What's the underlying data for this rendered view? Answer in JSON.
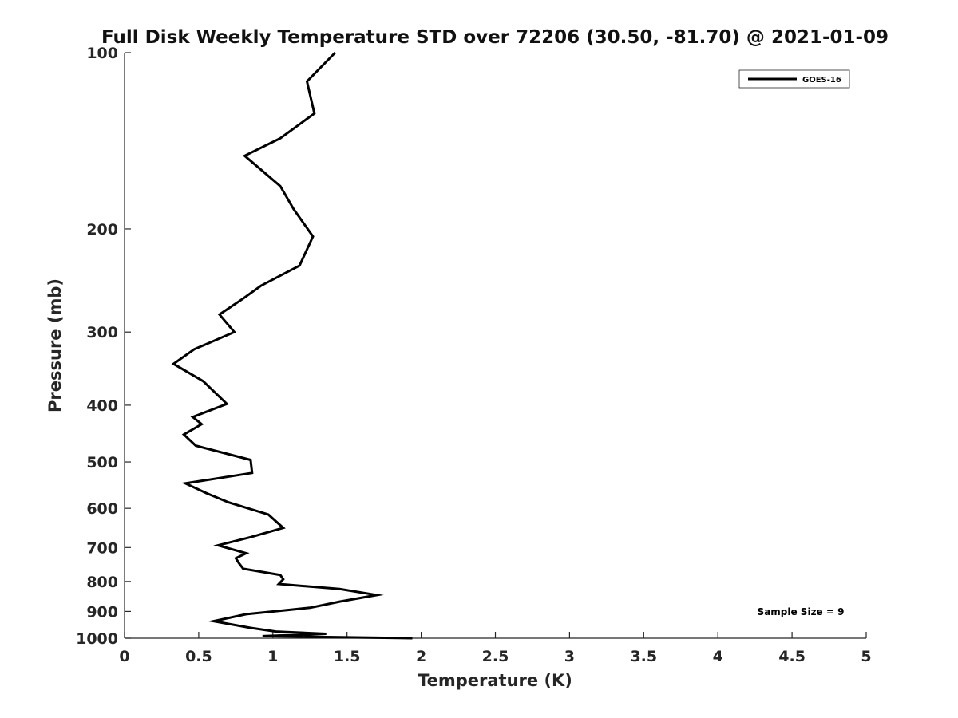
{
  "chart_data": {
    "type": "line",
    "title": "Full Disk Weekly Temperature STD over 72206 (30.50, -81.70) @ 2021-01-09",
    "xlabel": "Temperature (K)",
    "ylabel": "Pressure (mb)",
    "xlim": [
      0,
      5
    ],
    "ylim": [
      1000,
      100
    ],
    "yscale": "log",
    "grid": false,
    "legend_position": "top-right",
    "x_ticks": [
      "0",
      "0.5",
      "1",
      "1.5",
      "2",
      "2.5",
      "3",
      "3.5",
      "4",
      "4.5",
      "5"
    ],
    "y_ticks": [
      "100",
      "200",
      "300",
      "400",
      "500",
      "600",
      "700",
      "800",
      "900",
      "1000"
    ],
    "annotation": "Sample Size = 9",
    "series": [
      {
        "name": "GOES-16",
        "color": "#000000",
        "x": [
          1.42,
          1.23,
          1.28,
          1.05,
          0.81,
          1.05,
          1.14,
          1.27,
          1.18,
          0.92,
          0.8,
          0.64,
          0.74,
          0.47,
          0.33,
          0.53,
          0.63,
          0.69,
          0.46,
          0.52,
          0.4,
          0.48,
          0.85,
          0.86,
          0.41,
          0.55,
          0.7,
          0.97,
          1.07,
          0.85,
          0.63,
          0.82,
          0.75,
          0.77,
          0.8,
          1.05,
          1.07,
          1.04,
          1.45,
          1.7,
          1.45,
          1.25,
          0.82,
          0.6,
          0.85,
          1.02,
          1.36,
          0.93,
          1.94
        ],
        "y": [
          100,
          112,
          127,
          140,
          150,
          169,
          185,
          206,
          231,
          250,
          263,
          280,
          300,
          321,
          340,
          364,
          385,
          398,
          419,
          431,
          449,
          469,
          496,
          522,
          544,
          565,
          586,
          615,
          648,
          672,
          694,
          716,
          730,
          744,
          761,
          780,
          793,
          808,
          824,
          844,
          866,
          887,
          910,
          935,
          960,
          974,
          983,
          992,
          1000
        ]
      }
    ]
  }
}
